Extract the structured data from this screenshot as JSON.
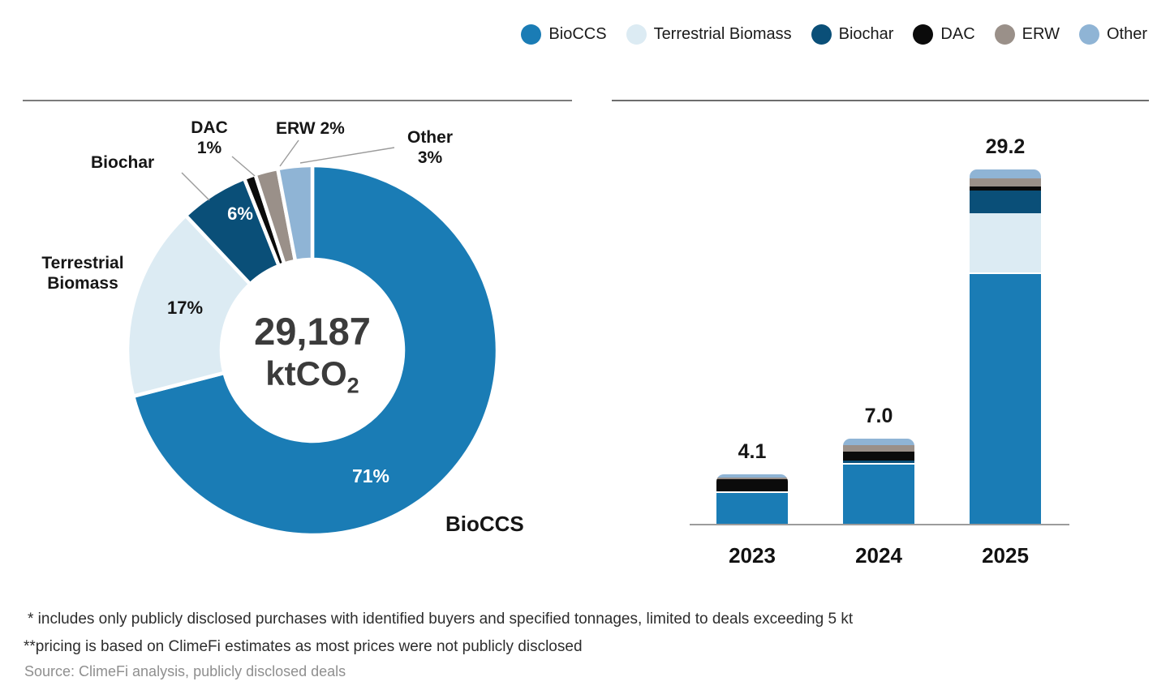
{
  "colors": {
    "BioCCS": "#1a7cb5",
    "Terrestrial Biomass": "#dcebf3",
    "Biochar": "#0a4f78",
    "DAC": "#0b0b0b",
    "ERW": "#9a9089",
    "Other": "#8fb4d5"
  },
  "legend": {
    "position": "top-right",
    "items": [
      "BioCCS",
      "Terrestrial Biomass",
      "Biochar",
      "DAC",
      "ERW",
      "Other"
    ]
  },
  "chart_data": [
    {
      "type": "pie",
      "subtype": "donut",
      "start": "top",
      "direction": "clockwise",
      "unit": "%",
      "center_value": "29,187",
      "center_unit_base": "ktCO",
      "center_unit_sub": "2",
      "segments": [
        {
          "label": "BioCCS",
          "value": 71,
          "value_label": "71%"
        },
        {
          "label": "Terrestrial Biomass",
          "value": 17,
          "value_label": "17%"
        },
        {
          "label": "Biochar",
          "value": 6,
          "value_label": "6%"
        },
        {
          "label": "DAC",
          "value": 1,
          "value_label": "1%"
        },
        {
          "label": "ERW",
          "value": 2,
          "value_label": "2%"
        },
        {
          "label": "Other",
          "value": 3,
          "value_label": "3%"
        }
      ]
    },
    {
      "type": "bar",
      "stacked": true,
      "grid": false,
      "categories": [
        "2023",
        "2024",
        "2025"
      ],
      "totals": [
        4.1,
        7.0,
        29.2
      ],
      "total_labels": [
        "4.1",
        "7.0",
        "29.2"
      ],
      "ylim": [
        0,
        30
      ],
      "series": [
        {
          "name": "BioCCS",
          "values": [
            2.65,
            5.0,
            20.7
          ]
        },
        {
          "name": "Terrestrial Biomass",
          "values": [
            0,
            0,
            4.9
          ]
        },
        {
          "name": "Biochar",
          "values": [
            0,
            0.2,
            1.9
          ]
        },
        {
          "name": "DAC",
          "values": [
            1.0,
            0.7,
            0.3
          ]
        },
        {
          "name": "ERW",
          "values": [
            0.15,
            0.6,
            0.7
          ]
        },
        {
          "name": "Other",
          "values": [
            0.3,
            0.5,
            0.7
          ]
        }
      ]
    }
  ],
  "footnotes": {
    "line1": "* includes only publicly disclosed purchases with identified buyers and specified tonnages, limited to deals exceeding 5 kt",
    "line2": "**pricing is based on ClimeFi estimates as most prices were not publicly disclosed",
    "source": "Source: ClimeFi analysis, publicly disclosed deals"
  }
}
